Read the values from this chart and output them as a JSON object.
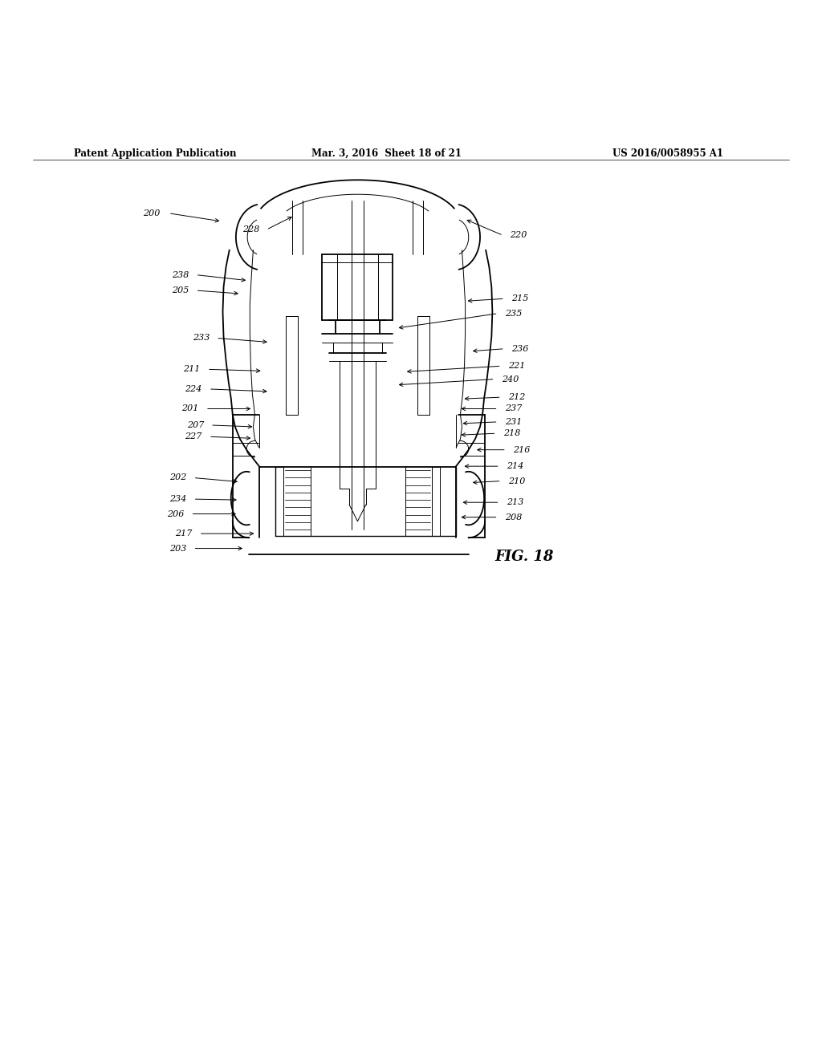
{
  "title_left": "Patent Application Publication",
  "title_mid": "Mar. 3, 2016  Sheet 18 of 21",
  "title_right": "US 2016/0058955 A1",
  "fig_label": "FIG. 18",
  "background": "#ffffff",
  "line_color": "#000000"
}
